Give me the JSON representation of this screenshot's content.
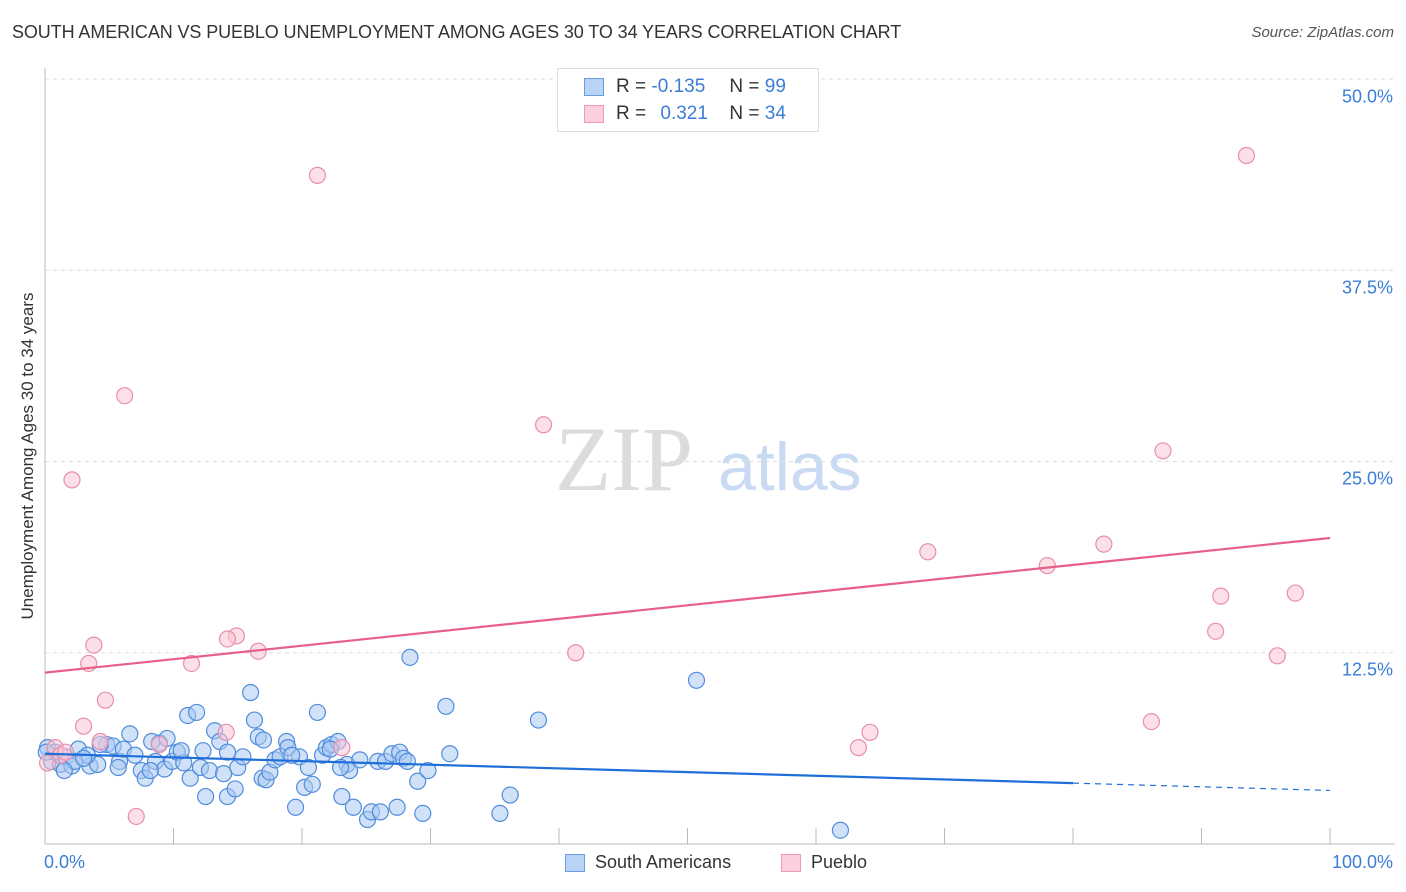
{
  "chart_data": {
    "type": "scatter",
    "title": "SOUTH AMERICAN VS PUEBLO UNEMPLOYMENT AMONG AGES 30 TO 34 YEARS CORRELATION CHART",
    "source": "Source: ZipAtlas.com",
    "xlabel": "",
    "ylabel": "Unemployment Among Ages 30 to 34 years",
    "xlim": [
      0,
      100
    ],
    "ylim": [
      0,
      50
    ],
    "x_tick_labels": [
      "0.0%",
      "100.0%"
    ],
    "y_ticks": [
      12.5,
      25.0,
      37.5,
      50.0
    ],
    "y_tick_labels": [
      "12.5%",
      "25.0%",
      "37.5%",
      "50.0%"
    ],
    "grid": true,
    "legend_placement": "top-center",
    "watermark": "ZIPatlas",
    "stats": [
      {
        "r_label": "R =",
        "r": "-0.135",
        "n_label": "N =",
        "n": "99"
      },
      {
        "r_label": "R =",
        "r": "0.321",
        "n_label": "N =",
        "n": "34"
      }
    ],
    "series": [
      {
        "name": "South Americans",
        "fill": "#a9c9f2",
        "stroke": "#4f8ddc",
        "line_color": "#1f6fd8",
        "trend": {
          "x0": 0,
          "y0": 5.9,
          "x_solid_end": 80,
          "x1": 100,
          "y1": 3.5
        },
        "points": [
          [
            0.2,
            6.3
          ],
          [
            0.5,
            5.4
          ],
          [
            1.2,
            5.2
          ],
          [
            1.6,
            5.7
          ],
          [
            2.1,
            5.1
          ],
          [
            2.6,
            6.2
          ],
          [
            3.5,
            5.1
          ],
          [
            4.1,
            5.2
          ],
          [
            3.3,
            5.8
          ],
          [
            4.8,
            6.5
          ],
          [
            5.3,
            6.4
          ],
          [
            5.8,
            5.4
          ],
          [
            6.1,
            6.2
          ],
          [
            6.6,
            7.2
          ],
          [
            7.0,
            5.8
          ],
          [
            7.5,
            4.8
          ],
          [
            7.8,
            4.3
          ],
          [
            8.6,
            5.4
          ],
          [
            8.9,
            6.6
          ],
          [
            9.5,
            6.9
          ],
          [
            9.3,
            4.9
          ],
          [
            9.9,
            5.4
          ],
          [
            10.3,
            6.0
          ],
          [
            10.8,
            5.3
          ],
          [
            10.6,
            6.1
          ],
          [
            11.3,
            4.3
          ],
          [
            11.1,
            8.4
          ],
          [
            11.8,
            8.6
          ],
          [
            12.1,
            5.0
          ],
          [
            12.5,
            3.1
          ],
          [
            12.8,
            4.8
          ],
          [
            13.2,
            7.4
          ],
          [
            13.6,
            6.7
          ],
          [
            13.9,
            4.6
          ],
          [
            14.2,
            3.1
          ],
          [
            14.8,
            3.6
          ],
          [
            15.0,
            5.0
          ],
          [
            15.4,
            5.7
          ],
          [
            16.0,
            9.9
          ],
          [
            16.3,
            8.1
          ],
          [
            16.6,
            7.0
          ],
          [
            16.9,
            4.3
          ],
          [
            17.2,
            4.2
          ],
          [
            17.5,
            4.7
          ],
          [
            17.9,
            5.5
          ],
          [
            18.3,
            5.7
          ],
          [
            18.8,
            6.7
          ],
          [
            18.9,
            6.3
          ],
          [
            19.5,
            2.4
          ],
          [
            19.8,
            5.7
          ],
          [
            20.2,
            3.7
          ],
          [
            20.5,
            5.0
          ],
          [
            20.8,
            3.9
          ],
          [
            21.2,
            8.6
          ],
          [
            21.6,
            5.8
          ],
          [
            21.9,
            6.3
          ],
          [
            22.3,
            6.5
          ],
          [
            22.8,
            6.7
          ],
          [
            23.1,
            3.1
          ],
          [
            23.5,
            5.2
          ],
          [
            23.7,
            4.8
          ],
          [
            24.0,
            2.4
          ],
          [
            25.1,
            1.6
          ],
          [
            25.4,
            2.1
          ],
          [
            26.1,
            2.1
          ],
          [
            25.9,
            5.4
          ],
          [
            26.5,
            5.4
          ],
          [
            27.0,
            5.9
          ],
          [
            27.4,
            2.4
          ],
          [
            27.6,
            6.0
          ],
          [
            27.9,
            5.6
          ],
          [
            28.2,
            5.4
          ],
          [
            28.4,
            12.2
          ],
          [
            29.0,
            4.1
          ],
          [
            29.4,
            2.0
          ],
          [
            29.8,
            4.8
          ],
          [
            31.2,
            9.0
          ],
          [
            31.5,
            5.9
          ],
          [
            35.4,
            2.0
          ],
          [
            36.2,
            3.2
          ],
          [
            38.4,
            8.1
          ],
          [
            50.7,
            10.7
          ],
          [
            61.9,
            0.9
          ],
          [
            4.3,
            6.5
          ],
          [
            5.7,
            5.0
          ],
          [
            8.2,
            4.8
          ],
          [
            14.2,
            6.0
          ],
          [
            22.2,
            6.2
          ],
          [
            23.0,
            5.0
          ],
          [
            0.8,
            6.0
          ],
          [
            2.3,
            5.4
          ],
          [
            1.5,
            4.8
          ],
          [
            19.2,
            5.8
          ],
          [
            24.5,
            5.5
          ],
          [
            8.3,
            6.7
          ],
          [
            0.1,
            6.0
          ],
          [
            3.0,
            5.6
          ],
          [
            12.3,
            6.1
          ],
          [
            17.0,
            6.8
          ]
        ]
      },
      {
        "name": "Pueblo",
        "fill": "#f9c4d3",
        "stroke": "#e88fab",
        "line_color": "#e8608a",
        "trend": {
          "x0": 0,
          "y0": 11.2,
          "x_solid_end": 100,
          "x1": 100,
          "y1": 20.0
        },
        "points": [
          [
            6.2,
            29.3
          ],
          [
            2.1,
            23.8
          ],
          [
            21.2,
            43.7
          ],
          [
            38.8,
            27.4
          ],
          [
            93.5,
            45.0
          ],
          [
            87.0,
            25.7
          ],
          [
            68.7,
            19.1
          ],
          [
            78.0,
            18.2
          ],
          [
            82.4,
            19.6
          ],
          [
            91.5,
            16.2
          ],
          [
            97.3,
            16.4
          ],
          [
            91.1,
            13.9
          ],
          [
            95.9,
            12.3
          ],
          [
            41.3,
            12.5
          ],
          [
            14.9,
            13.6
          ],
          [
            14.2,
            13.4
          ],
          [
            3.8,
            13.0
          ],
          [
            3.4,
            11.8
          ],
          [
            11.4,
            11.8
          ],
          [
            16.6,
            12.6
          ],
          [
            4.7,
            9.4
          ],
          [
            3.0,
            7.7
          ],
          [
            14.1,
            7.3
          ],
          [
            64.2,
            7.3
          ],
          [
            63.3,
            6.3
          ],
          [
            86.1,
            8.0
          ],
          [
            7.1,
            1.8
          ],
          [
            8.9,
            6.5
          ],
          [
            23.1,
            6.3
          ],
          [
            4.3,
            6.7
          ],
          [
            0.8,
            6.3
          ],
          [
            1.2,
            5.8
          ],
          [
            0.2,
            5.3
          ],
          [
            1.6,
            6.0
          ]
        ]
      }
    ]
  }
}
